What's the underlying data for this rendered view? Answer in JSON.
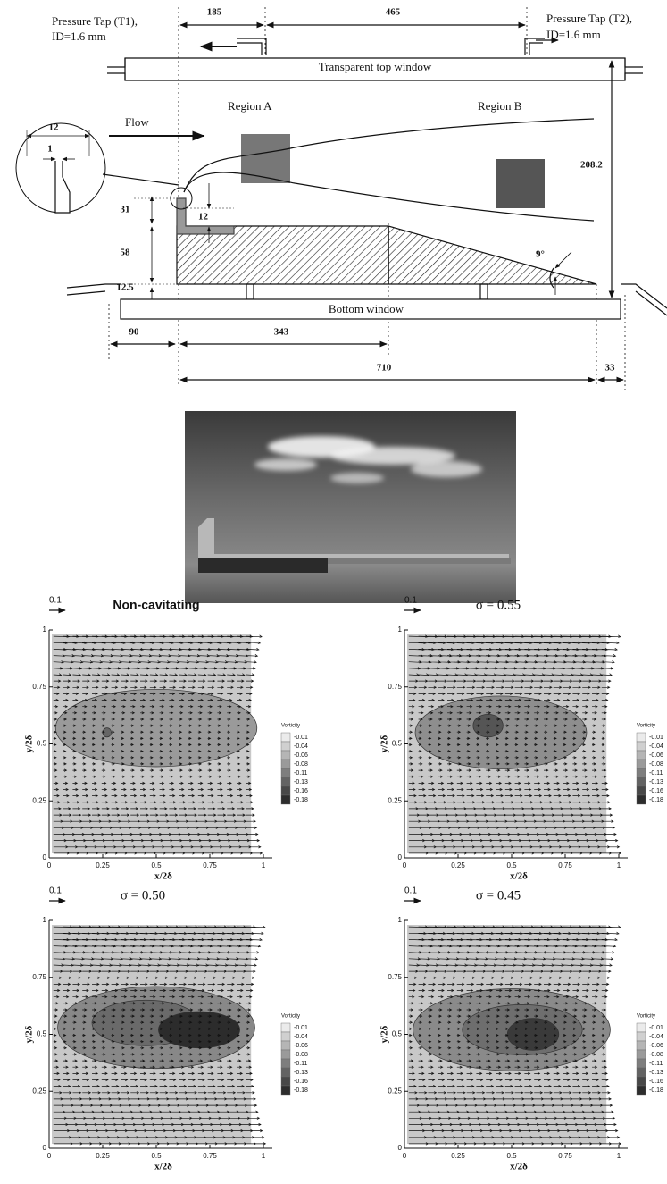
{
  "diagram": {
    "pressure_tap_1": [
      "Pressure Tap (T1),",
      "ID=1.6 mm"
    ],
    "pressure_tap_2": [
      "Pressure Tap (T2),",
      "ID=1.6 mm"
    ],
    "top_window": "Transparent top window",
    "bottom_window": "Bottom window",
    "flow": "Flow",
    "region_a": "Region A",
    "region_b": "Region B",
    "dimensions": [
      "185",
      "465",
      "12",
      "1",
      "208.2",
      "31",
      "12",
      "58",
      "12.5",
      "9°",
      "90",
      "343",
      "710",
      "33"
    ]
  },
  "axes": {
    "xticks": [
      0,
      0.25,
      0.5,
      0.75,
      1
    ],
    "yticks": [
      0,
      0.25,
      0.5,
      0.75,
      1
    ],
    "xlabel": "x/2δ",
    "ylabel": "y/2δ"
  },
  "colorbar": {
    "title": "Vorticity",
    "levels": [
      -0.01,
      -0.04,
      -0.06,
      -0.08,
      -0.11,
      -0.13,
      -0.16,
      -0.18
    ]
  },
  "panels": [
    {
      "title": "Non-cavitating",
      "scale": 0.1
    },
    {
      "title": "σ = 0.55",
      "scale": 0.1
    },
    {
      "title": "σ = 0.50",
      "scale": 0.1
    },
    {
      "title": "σ = 0.45",
      "scale": 0.1
    }
  ]
}
